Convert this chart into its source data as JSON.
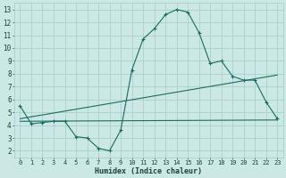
{
  "xlabel": "Humidex (Indice chaleur)",
  "background_color": "#cce8e5",
  "grid_color": "#aacfcc",
  "line_color": "#1a6b60",
  "xlim": [
    -0.5,
    23.5
  ],
  "ylim": [
    1.5,
    13.5
  ],
  "xticks": [
    0,
    1,
    2,
    3,
    4,
    5,
    6,
    7,
    8,
    9,
    10,
    11,
    12,
    13,
    14,
    15,
    16,
    17,
    18,
    19,
    20,
    21,
    22,
    23
  ],
  "yticks": [
    2,
    3,
    4,
    5,
    6,
    7,
    8,
    9,
    10,
    11,
    12,
    13
  ],
  "series1_x": [
    0,
    1,
    2,
    3,
    4,
    5,
    6,
    7,
    8,
    9,
    10,
    11,
    12,
    13,
    14,
    15,
    16,
    17,
    18,
    19,
    20,
    21,
    22,
    23
  ],
  "series1_y": [
    5.5,
    4.1,
    4.2,
    4.3,
    4.3,
    3.1,
    3.0,
    2.2,
    2.0,
    3.6,
    8.3,
    10.7,
    11.5,
    12.6,
    13.0,
    12.8,
    11.2,
    8.8,
    9.0,
    7.8,
    7.5,
    7.5,
    5.8,
    4.5
  ],
  "series3_x": [
    0,
    23
  ],
  "series3_y": [
    4.3,
    4.4
  ],
  "series4_x": [
    0,
    23
  ],
  "series4_y": [
    4.5,
    7.9
  ]
}
